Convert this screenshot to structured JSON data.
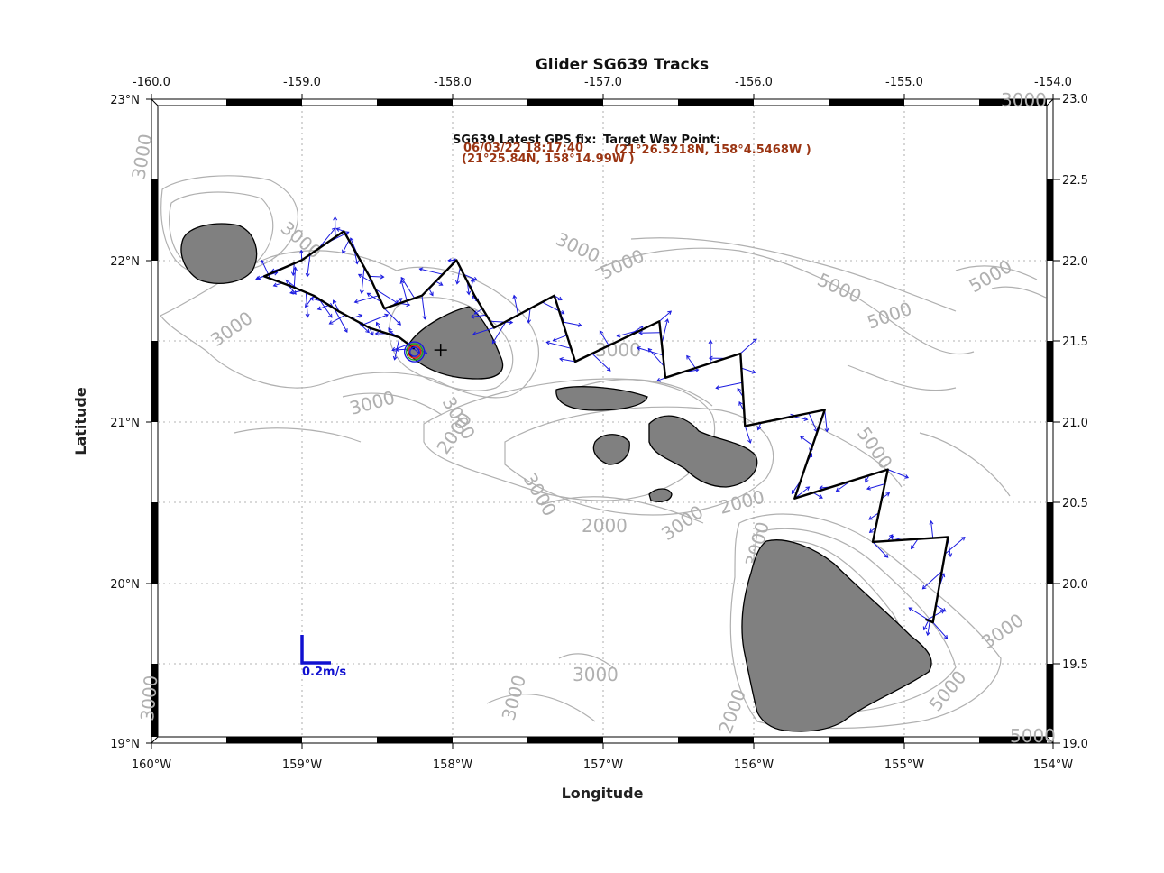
{
  "map": {
    "title": "Glider SG639 Tracks",
    "xlabel": "Longitude",
    "ylabel": "Latitude",
    "lon_range": [
      -160.0,
      -154.0
    ],
    "lat_range": [
      19.0,
      23.0
    ],
    "grid": true,
    "top_ticks": [
      "-160.0",
      "-159.0",
      "-158.0",
      "-157.0",
      "-156.0",
      "-155.0",
      "-154.0"
    ],
    "bottom_ticks": [
      "160°W",
      "159°W",
      "158°W",
      "157°W",
      "156°W",
      "155°W",
      "154°W"
    ],
    "left_ticks": [
      "23°N",
      "22°N",
      "21°N",
      "20°N",
      "19°N"
    ],
    "right_ticks": [
      "23.0",
      "22.5",
      "22.0",
      "21.5",
      "21.0",
      "20.5",
      "20.0",
      "19.5",
      "19.0"
    ],
    "contour_labels": [
      "3000",
      "3000",
      "3000",
      "3000",
      "2000",
      "3000",
      "5000",
      "5000",
      "5000",
      "3000",
      "3000",
      "2000",
      "3000",
      "5000",
      "5000",
      "3000",
      "5000",
      "3000",
      "3000",
      "3000",
      "3000",
      "5000",
      "2000",
      "3000",
      "3000",
      "2000"
    ],
    "scale_label": "0.2m/s",
    "colors": {
      "land": "#808080",
      "coast": "#000000",
      "contour": "#b0b0b0",
      "track": "#000000",
      "current_vectors": "#1a1ae0",
      "scale": "#1010d0",
      "info_value": "#9a3412"
    }
  },
  "info": {
    "gps_label": "SG639 Latest GPS fix:",
    "gps_datetime": "06/03/22 18:17:40",
    "gps_position": "(21°25.84N, 158°14.99W )",
    "waypoint_label": "Target Way Point:",
    "waypoint_position": "(21°26.5218N, 158°4.5468W )"
  },
  "chart_data": {
    "type": "map",
    "title": "Glider SG639 Tracks",
    "xlabel": "Longitude",
    "ylabel": "Latitude",
    "xlim": [
      -160.0,
      -154.0
    ],
    "ylim": [
      19.0,
      23.0
    ],
    "track_lonlat": [
      [
        -158.25,
        21.45
      ],
      [
        -158.35,
        21.52
      ],
      [
        -158.55,
        21.58
      ],
      [
        -158.75,
        21.68
      ],
      [
        -158.92,
        21.78
      ],
      [
        -159.05,
        21.83
      ],
      [
        -159.25,
        21.9
      ],
      [
        -159.0,
        22.0
      ],
      [
        -158.72,
        22.18
      ],
      [
        -158.55,
        21.9
      ],
      [
        -158.45,
        21.7
      ],
      [
        -158.2,
        21.78
      ],
      [
        -157.97,
        22.0
      ],
      [
        -157.85,
        21.78
      ],
      [
        -157.72,
        21.58
      ],
      [
        -157.32,
        21.78
      ],
      [
        -157.18,
        21.37
      ],
      [
        -156.62,
        21.62
      ],
      [
        -156.58,
        21.27
      ],
      [
        -156.08,
        21.42
      ],
      [
        -156.05,
        20.97
      ],
      [
        -155.52,
        21.07
      ],
      [
        -155.72,
        20.52
      ],
      [
        -155.1,
        20.7
      ],
      [
        -155.2,
        20.25
      ],
      [
        -154.7,
        20.28
      ],
      [
        -154.8,
        19.75
      ],
      [
        -154.85,
        19.77
      ]
    ],
    "latest_gps_fix": {
      "lat": 21.4307,
      "lon": -158.2498
    },
    "target_waypoint": {
      "lat": 21.442,
      "lon": -158.0758
    }
  }
}
